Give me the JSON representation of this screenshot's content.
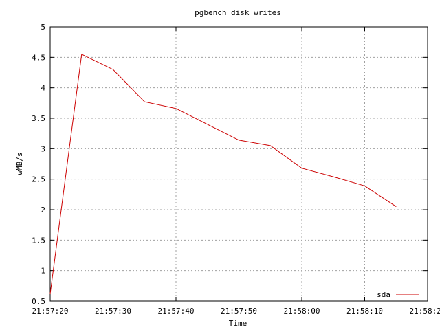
{
  "chart_data": {
    "type": "line",
    "title": "pgbench disk writes",
    "xlabel": "Time",
    "ylabel": "wMB/s",
    "ylim": [
      0.5,
      5
    ],
    "yticks": [
      "0.5",
      "1",
      "1.5",
      "2",
      "2.5",
      "3",
      "3.5",
      "4",
      "4.5",
      "5"
    ],
    "xlim": [
      "21:57:20",
      "21:58:20"
    ],
    "xticks": [
      "21:57:20",
      "21:57:30",
      "21:57:40",
      "21:57:50",
      "21:58:00",
      "21:58:10",
      "21:58:20"
    ],
    "grid": true,
    "legend_position": "bottom-right",
    "series": [
      {
        "name": "sda",
        "color": "#cc0000",
        "x": [
          "21:57:20",
          "21:57:25",
          "21:57:30",
          "21:57:35",
          "21:57:40",
          "21:57:45",
          "21:57:50",
          "21:57:55",
          "21:58:00",
          "21:58:05",
          "21:58:10",
          "21:58:15"
        ],
        "values": [
          0.62,
          4.55,
          4.3,
          3.77,
          3.66,
          3.4,
          3.14,
          3.05,
          2.68,
          2.54,
          2.39,
          2.05
        ]
      }
    ]
  }
}
